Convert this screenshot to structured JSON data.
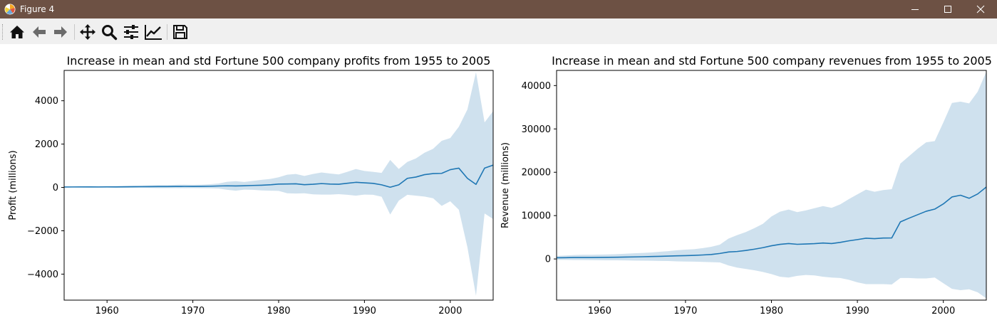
{
  "window": {
    "title": "Figure 4",
    "controls": [
      "minimize",
      "maximize",
      "close"
    ]
  },
  "toolbar": {
    "buttons": [
      {
        "name": "home",
        "icon": "home-icon"
      },
      {
        "name": "back",
        "icon": "arrow-left-icon"
      },
      {
        "name": "forward",
        "icon": "arrow-right-icon"
      },
      {
        "name": "pan",
        "icon": "move-icon"
      },
      {
        "name": "zoom",
        "icon": "magnifier-icon"
      },
      {
        "name": "configure-subplots",
        "icon": "sliders-icon"
      },
      {
        "name": "edit-axes",
        "icon": "line-chart-icon"
      },
      {
        "name": "save",
        "icon": "floppy-disk-icon"
      }
    ]
  },
  "colors": {
    "titlebar": "#6d5144",
    "line": "#1f77b4",
    "band": "#cfe1ee"
  },
  "chart_data": [
    {
      "type": "line",
      "title": "Increase in mean and std Fortune 500 company profits from 1955 to 2005",
      "xlabel": "",
      "ylabel": "Profit (millions)",
      "xlim": [
        1955,
        2005
      ],
      "ylim": [
        -5200,
        5400
      ],
      "xticks": [
        1960,
        1970,
        1980,
        1990,
        2000
      ],
      "yticks": [
        -4000,
        -2000,
        0,
        2000,
        4000
      ],
      "ytick_labels": [
        "−4000",
        "−2000",
        "0",
        "2000",
        "4000"
      ],
      "grid": false,
      "x": [
        1955,
        1956,
        1957,
        1958,
        1959,
        1960,
        1961,
        1962,
        1963,
        1964,
        1965,
        1966,
        1967,
        1968,
        1969,
        1970,
        1971,
        1972,
        1973,
        1974,
        1975,
        1976,
        1977,
        1978,
        1979,
        1980,
        1981,
        1982,
        1983,
        1984,
        1985,
        1986,
        1987,
        1988,
        1989,
        1990,
        1991,
        1992,
        1993,
        1994,
        1995,
        1996,
        1997,
        1998,
        1999,
        2000,
        2001,
        2002,
        2003,
        2004,
        2005
      ],
      "mean": [
        20,
        22,
        24,
        24,
        22,
        26,
        25,
        27,
        31,
        34,
        38,
        40,
        41,
        45,
        47,
        45,
        48,
        55,
        67,
        75,
        68,
        77,
        92,
        103,
        121,
        154,
        160,
        168,
        128,
        146,
        178,
        154,
        146,
        193,
        236,
        214,
        188,
        121,
        10,
        120,
        420,
        480,
        590,
        640,
        650,
        820,
        890,
        420,
        140,
        890,
        1030
      ],
      "std_upper": [
        40,
        45,
        50,
        55,
        55,
        60,
        60,
        70,
        80,
        90,
        100,
        110,
        110,
        120,
        130,
        120,
        130,
        150,
        180,
        260,
        290,
        250,
        300,
        350,
        390,
        470,
        590,
        620,
        530,
        620,
        690,
        640,
        600,
        720,
        850,
        760,
        720,
        670,
        1270,
        850,
        1180,
        1340,
        1600,
        1780,
        2150,
        2280,
        2800,
        3600,
        5320,
        3000,
        3520
      ],
      "std_lower": [
        0,
        0,
        0,
        -5,
        -10,
        -10,
        -10,
        -15,
        -20,
        -20,
        -25,
        -30,
        -30,
        -30,
        -35,
        -30,
        -35,
        -40,
        -50,
        -110,
        -150,
        -100,
        -110,
        -140,
        -150,
        -160,
        -270,
        -280,
        -270,
        -320,
        -330,
        -330,
        -310,
        -340,
        -380,
        -330,
        -340,
        -430,
        -1250,
        -610,
        -340,
        -380,
        -420,
        -500,
        -850,
        -640,
        -1030,
        -2760,
        -5000,
        -1200,
        -1460
      ]
    },
    {
      "type": "line",
      "title": "Increase in mean and std Fortune 500 company revenues from 1955 to 2005",
      "xlabel": "",
      "ylabel": "Revenue (millions)",
      "xlim": [
        1955,
        2005
      ],
      "ylim": [
        -9500,
        43500
      ],
      "xticks": [
        1960,
        1970,
        1980,
        1990,
        2000
      ],
      "yticks": [
        0,
        10000,
        20000,
        30000,
        40000
      ],
      "ytick_labels": [
        "0",
        "10000",
        "20000",
        "30000",
        "40000"
      ],
      "grid": false,
      "x": [
        1955,
        1956,
        1957,
        1958,
        1959,
        1960,
        1961,
        1962,
        1963,
        1964,
        1965,
        1966,
        1967,
        1968,
        1969,
        1970,
        1971,
        1972,
        1973,
        1974,
        1975,
        1976,
        1977,
        1978,
        1979,
        1980,
        1981,
        1982,
        1983,
        1984,
        1985,
        1986,
        1987,
        1988,
        1989,
        1990,
        1991,
        1992,
        1993,
        1994,
        1995,
        1996,
        1997,
        1998,
        1999,
        2000,
        2001,
        2002,
        2003,
        2004,
        2005
      ],
      "mean": [
        270,
        300,
        330,
        340,
        340,
        360,
        370,
        400,
        430,
        470,
        510,
        560,
        600,
        660,
        720,
        770,
        830,
        920,
        1030,
        1270,
        1600,
        1720,
        1950,
        2250,
        2600,
        3040,
        3370,
        3550,
        3380,
        3450,
        3540,
        3680,
        3560,
        3820,
        4180,
        4470,
        4780,
        4680,
        4830,
        4850,
        8550,
        9400,
        10200,
        11000,
        11500,
        12700,
        14300,
        14700,
        14000,
        15000,
        16600
      ],
      "std_upper": [
        700,
        800,
        900,
        950,
        950,
        1000,
        1050,
        1100,
        1200,
        1300,
        1400,
        1500,
        1650,
        1800,
        2000,
        2150,
        2250,
        2500,
        2800,
        3300,
        4700,
        5500,
        6200,
        7100,
        8100,
        9800,
        10900,
        11400,
        10800,
        11200,
        11700,
        12200,
        11800,
        12600,
        13800,
        14900,
        16000,
        15500,
        15900,
        16100,
        22000,
        23700,
        25400,
        26900,
        27200,
        31500,
        36000,
        36300,
        35900,
        38600,
        43200
      ],
      "std_lower": [
        -200,
        -200,
        -250,
        -250,
        -280,
        -300,
        -310,
        -320,
        -340,
        -370,
        -400,
        -420,
        -450,
        -480,
        -550,
        -600,
        -620,
        -680,
        -750,
        -800,
        -1500,
        -2000,
        -2300,
        -2600,
        -3000,
        -3500,
        -4100,
        -4300,
        -3900,
        -3700,
        -3800,
        -4100,
        -4300,
        -4400,
        -4800,
        -5400,
        -5800,
        -5800,
        -5800,
        -5900,
        -4400,
        -4400,
        -4500,
        -4500,
        -4300,
        -5600,
        -6900,
        -7200,
        -7000,
        -7700,
        -9100
      ]
    }
  ]
}
